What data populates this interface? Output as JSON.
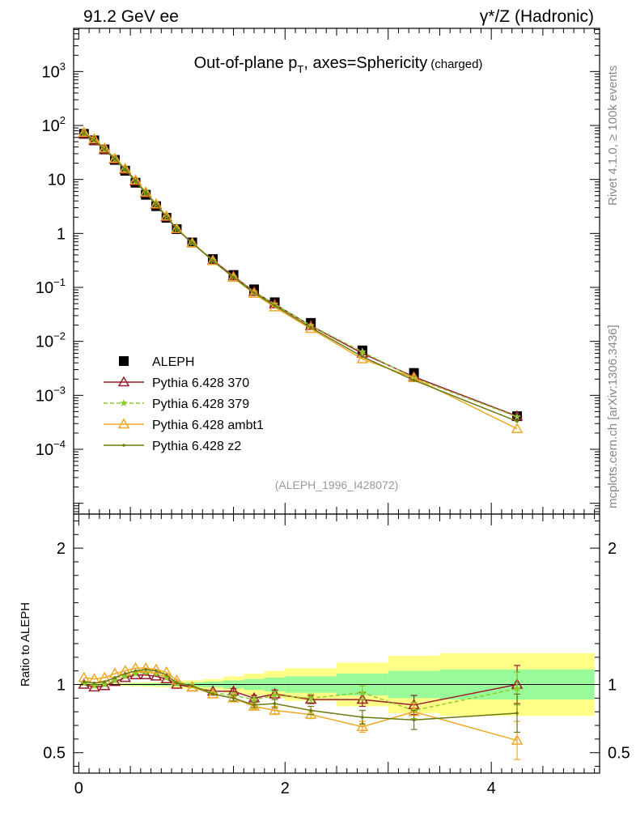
{
  "header": {
    "left": "91.2 GeV ee",
    "right": "γ*/Z (Hadronic)"
  },
  "side_labels": {
    "rivet": "Rivet 4.1.0, ≥ 100k events",
    "mcplots": "mcplots.cern.ch [arXiv:1306.3436]"
  },
  "chart_data": {
    "type": "line",
    "title_main": "Out-of-plane p",
    "title_sub": "T",
    "title_rest": ", axes=Sphericity",
    "title_note": "(charged)",
    "watermark": "(ALEPH_1996_I428072)",
    "x": [
      0.05,
      0.15,
      0.25,
      0.35,
      0.45,
      0.55,
      0.65,
      0.75,
      0.85,
      0.95,
      1.1,
      1.3,
      1.5,
      1.7,
      1.9,
      2.25,
      2.75,
      3.25,
      4.25
    ],
    "xedges": [
      0,
      0.1,
      0.2,
      0.3,
      0.4,
      0.5,
      0.6,
      0.7,
      0.8,
      0.9,
      1.0,
      1.2,
      1.4,
      1.6,
      1.8,
      2.0,
      2.5,
      3.0,
      3.5,
      5.0
    ],
    "xlim": [
      -0.05,
      5.05
    ],
    "xticks": [
      0,
      2,
      4
    ],
    "main": {
      "ylim_log10": [
        -5.2,
        3.8
      ],
      "yticks": [
        {
          "v": -4,
          "base": "10",
          "exp": "−4"
        },
        {
          "v": -3,
          "base": "10",
          "exp": "−3"
        },
        {
          "v": -2,
          "base": "10",
          "exp": "−2"
        },
        {
          "v": -1,
          "base": "10",
          "exp": "−1"
        },
        {
          "v": 0,
          "base": "1",
          "exp": ""
        },
        {
          "v": 1,
          "base": "10",
          "exp": ""
        },
        {
          "v": 2,
          "base": "10",
          "exp": "2"
        },
        {
          "v": 3,
          "base": "10",
          "exp": "3"
        }
      ]
    },
    "ratio": {
      "ylabel": "Ratio to ALEPH",
      "ylim": [
        0.35,
        2.25
      ],
      "yticks": [
        0.5,
        1,
        2
      ],
      "yticklabels": [
        "0.5",
        "1",
        "2"
      ],
      "band_green": [
        0.004,
        0.004,
        0.004,
        0.005,
        0.006,
        0.007,
        0.008,
        0.009,
        0.01,
        0.012,
        0.015,
        0.02,
        0.03,
        0.04,
        0.05,
        0.06,
        0.08,
        0.1,
        0.11
      ],
      "band_yellow": [
        0.008,
        0.008,
        0.009,
        0.01,
        0.012,
        0.014,
        0.016,
        0.018,
        0.02,
        0.024,
        0.03,
        0.04,
        0.06,
        0.08,
        0.1,
        0.12,
        0.16,
        0.21,
        0.23
      ]
    },
    "series": [
      {
        "name": "ALEPH",
        "color": "#000000",
        "marker": "square",
        "dash": "",
        "values": [
          70,
          53,
          36,
          23,
          14.5,
          8.7,
          5.2,
          3.2,
          1.95,
          1.2,
          0.68,
          0.335,
          0.17,
          0.092,
          0.053,
          0.022,
          0.0068,
          0.0026,
          0.00041
        ],
        "ratio": [
          1,
          1,
          1,
          1,
          1,
          1,
          1,
          1,
          1,
          1,
          1,
          1,
          1,
          1,
          1,
          1,
          1,
          1,
          1
        ]
      },
      {
        "name": "Pythia 6.428 370",
        "color": "#9b1a2b",
        "marker": "triangle",
        "dash": "",
        "values": [
          70,
          52,
          35.6,
          23.5,
          15.2,
          9.3,
          5.6,
          3.4,
          2.02,
          1.2,
          0.66,
          0.32,
          0.162,
          0.083,
          0.049,
          0.0195,
          0.006,
          0.0022,
          0.00041
        ],
        "ratio": [
          1.0,
          0.98,
          0.99,
          1.02,
          1.05,
          1.07,
          1.07,
          1.06,
          1.04,
          1.0,
          0.98,
          0.95,
          0.95,
          0.9,
          0.93,
          0.89,
          0.89,
          0.85,
          1.0
        ],
        "err": [
          0.01,
          0.01,
          0.01,
          0.01,
          0.01,
          0.01,
          0.01,
          0.01,
          0.01,
          0.01,
          0.01,
          0.01,
          0.02,
          0.02,
          0.03,
          0.03,
          0.05,
          0.07,
          0.14
        ]
      },
      {
        "name": "Pythia 6.428 379",
        "color": "#8ccc2c",
        "marker": "star",
        "dash": "5,3",
        "values": [
          71,
          52.5,
          36,
          23.8,
          15.4,
          9.4,
          5.65,
          3.45,
          2.05,
          1.21,
          0.67,
          0.315,
          0.157,
          0.082,
          0.049,
          0.0197,
          0.0064,
          0.0021,
          0.0004
        ],
        "ratio": [
          1.01,
          0.99,
          1.0,
          1.03,
          1.06,
          1.08,
          1.09,
          1.08,
          1.05,
          1.01,
          0.99,
          0.94,
          0.92,
          0.89,
          0.92,
          0.9,
          0.94,
          0.81,
          0.97
        ],
        "err": [
          0.01,
          0.01,
          0.01,
          0.01,
          0.01,
          0.01,
          0.01,
          0.01,
          0.01,
          0.01,
          0.01,
          0.01,
          0.02,
          0.02,
          0.03,
          0.03,
          0.05,
          0.06,
          0.12
        ]
      },
      {
        "name": "Pythia 6.428 ambt1",
        "color": "#f0a823",
        "marker": "triangle",
        "dash": "",
        "values": [
          74,
          56,
          38,
          24.5,
          15.9,
          9.7,
          5.8,
          3.5,
          2.08,
          1.22,
          0.66,
          0.31,
          0.152,
          0.077,
          0.043,
          0.0172,
          0.0047,
          0.0021,
          0.00024
        ],
        "ratio": [
          1.05,
          1.04,
          1.05,
          1.08,
          1.1,
          1.12,
          1.12,
          1.11,
          1.09,
          1.03,
          0.98,
          0.93,
          0.9,
          0.84,
          0.81,
          0.78,
          0.69,
          0.8,
          0.59
        ],
        "err": [
          0.01,
          0.01,
          0.01,
          0.01,
          0.01,
          0.01,
          0.01,
          0.01,
          0.01,
          0.01,
          0.01,
          0.01,
          0.02,
          0.02,
          0.03,
          0.03,
          0.04,
          0.06,
          0.14
        ]
      },
      {
        "name": "Pythia 6.428 z2",
        "color": "#6b7a13",
        "marker": "dot",
        "dash": "",
        "values": [
          71,
          53,
          36.5,
          24,
          15.4,
          9.4,
          5.65,
          3.45,
          2.05,
          1.2,
          0.67,
          0.31,
          0.154,
          0.079,
          0.046,
          0.018,
          0.0052,
          0.0019,
          0.00033
        ],
        "ratio": [
          1.02,
          1.01,
          1.02,
          1.05,
          1.08,
          1.1,
          1.11,
          1.1,
          1.07,
          1.01,
          0.99,
          0.93,
          0.9,
          0.85,
          0.86,
          0.81,
          0.76,
          0.74,
          0.79
        ],
        "err": [
          0.01,
          0.01,
          0.01,
          0.01,
          0.01,
          0.01,
          0.01,
          0.01,
          0.01,
          0.01,
          0.01,
          0.01,
          0.02,
          0.02,
          0.03,
          0.03,
          0.05,
          0.07,
          0.14
        ]
      }
    ]
  }
}
